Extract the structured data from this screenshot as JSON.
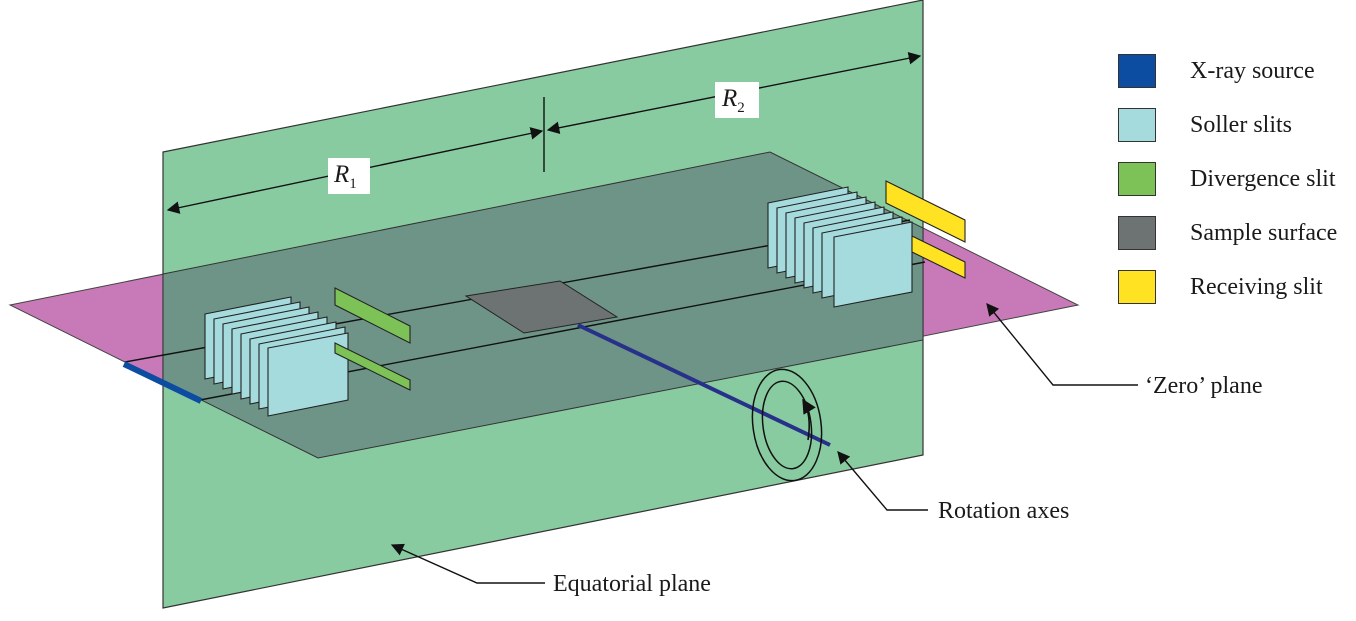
{
  "dimensions": {
    "r1": "R",
    "r1_sub": "1",
    "r2": "R",
    "r2_sub": "2"
  },
  "legend": [
    {
      "label": "X-ray source",
      "color": "#0c4da2"
    },
    {
      "label": "Soller slits",
      "color": "#a5dbdd"
    },
    {
      "label": "Divergence slit",
      "color": "#7dc257"
    },
    {
      "label": "Sample surface",
      "color": "#6d7372"
    },
    {
      "label": "Receiving slit",
      "color": "#ffe221"
    }
  ],
  "callouts": {
    "zero_plane": "‘Zero’ plane",
    "rotation_axes": "Rotation axes",
    "equatorial_plane": "Equatorial plane"
  },
  "colors": {
    "equatorial_plane": "#85c99e",
    "zero_plane": "#c87ab8",
    "overlap": "#6e9487",
    "beam": "#28318a"
  }
}
